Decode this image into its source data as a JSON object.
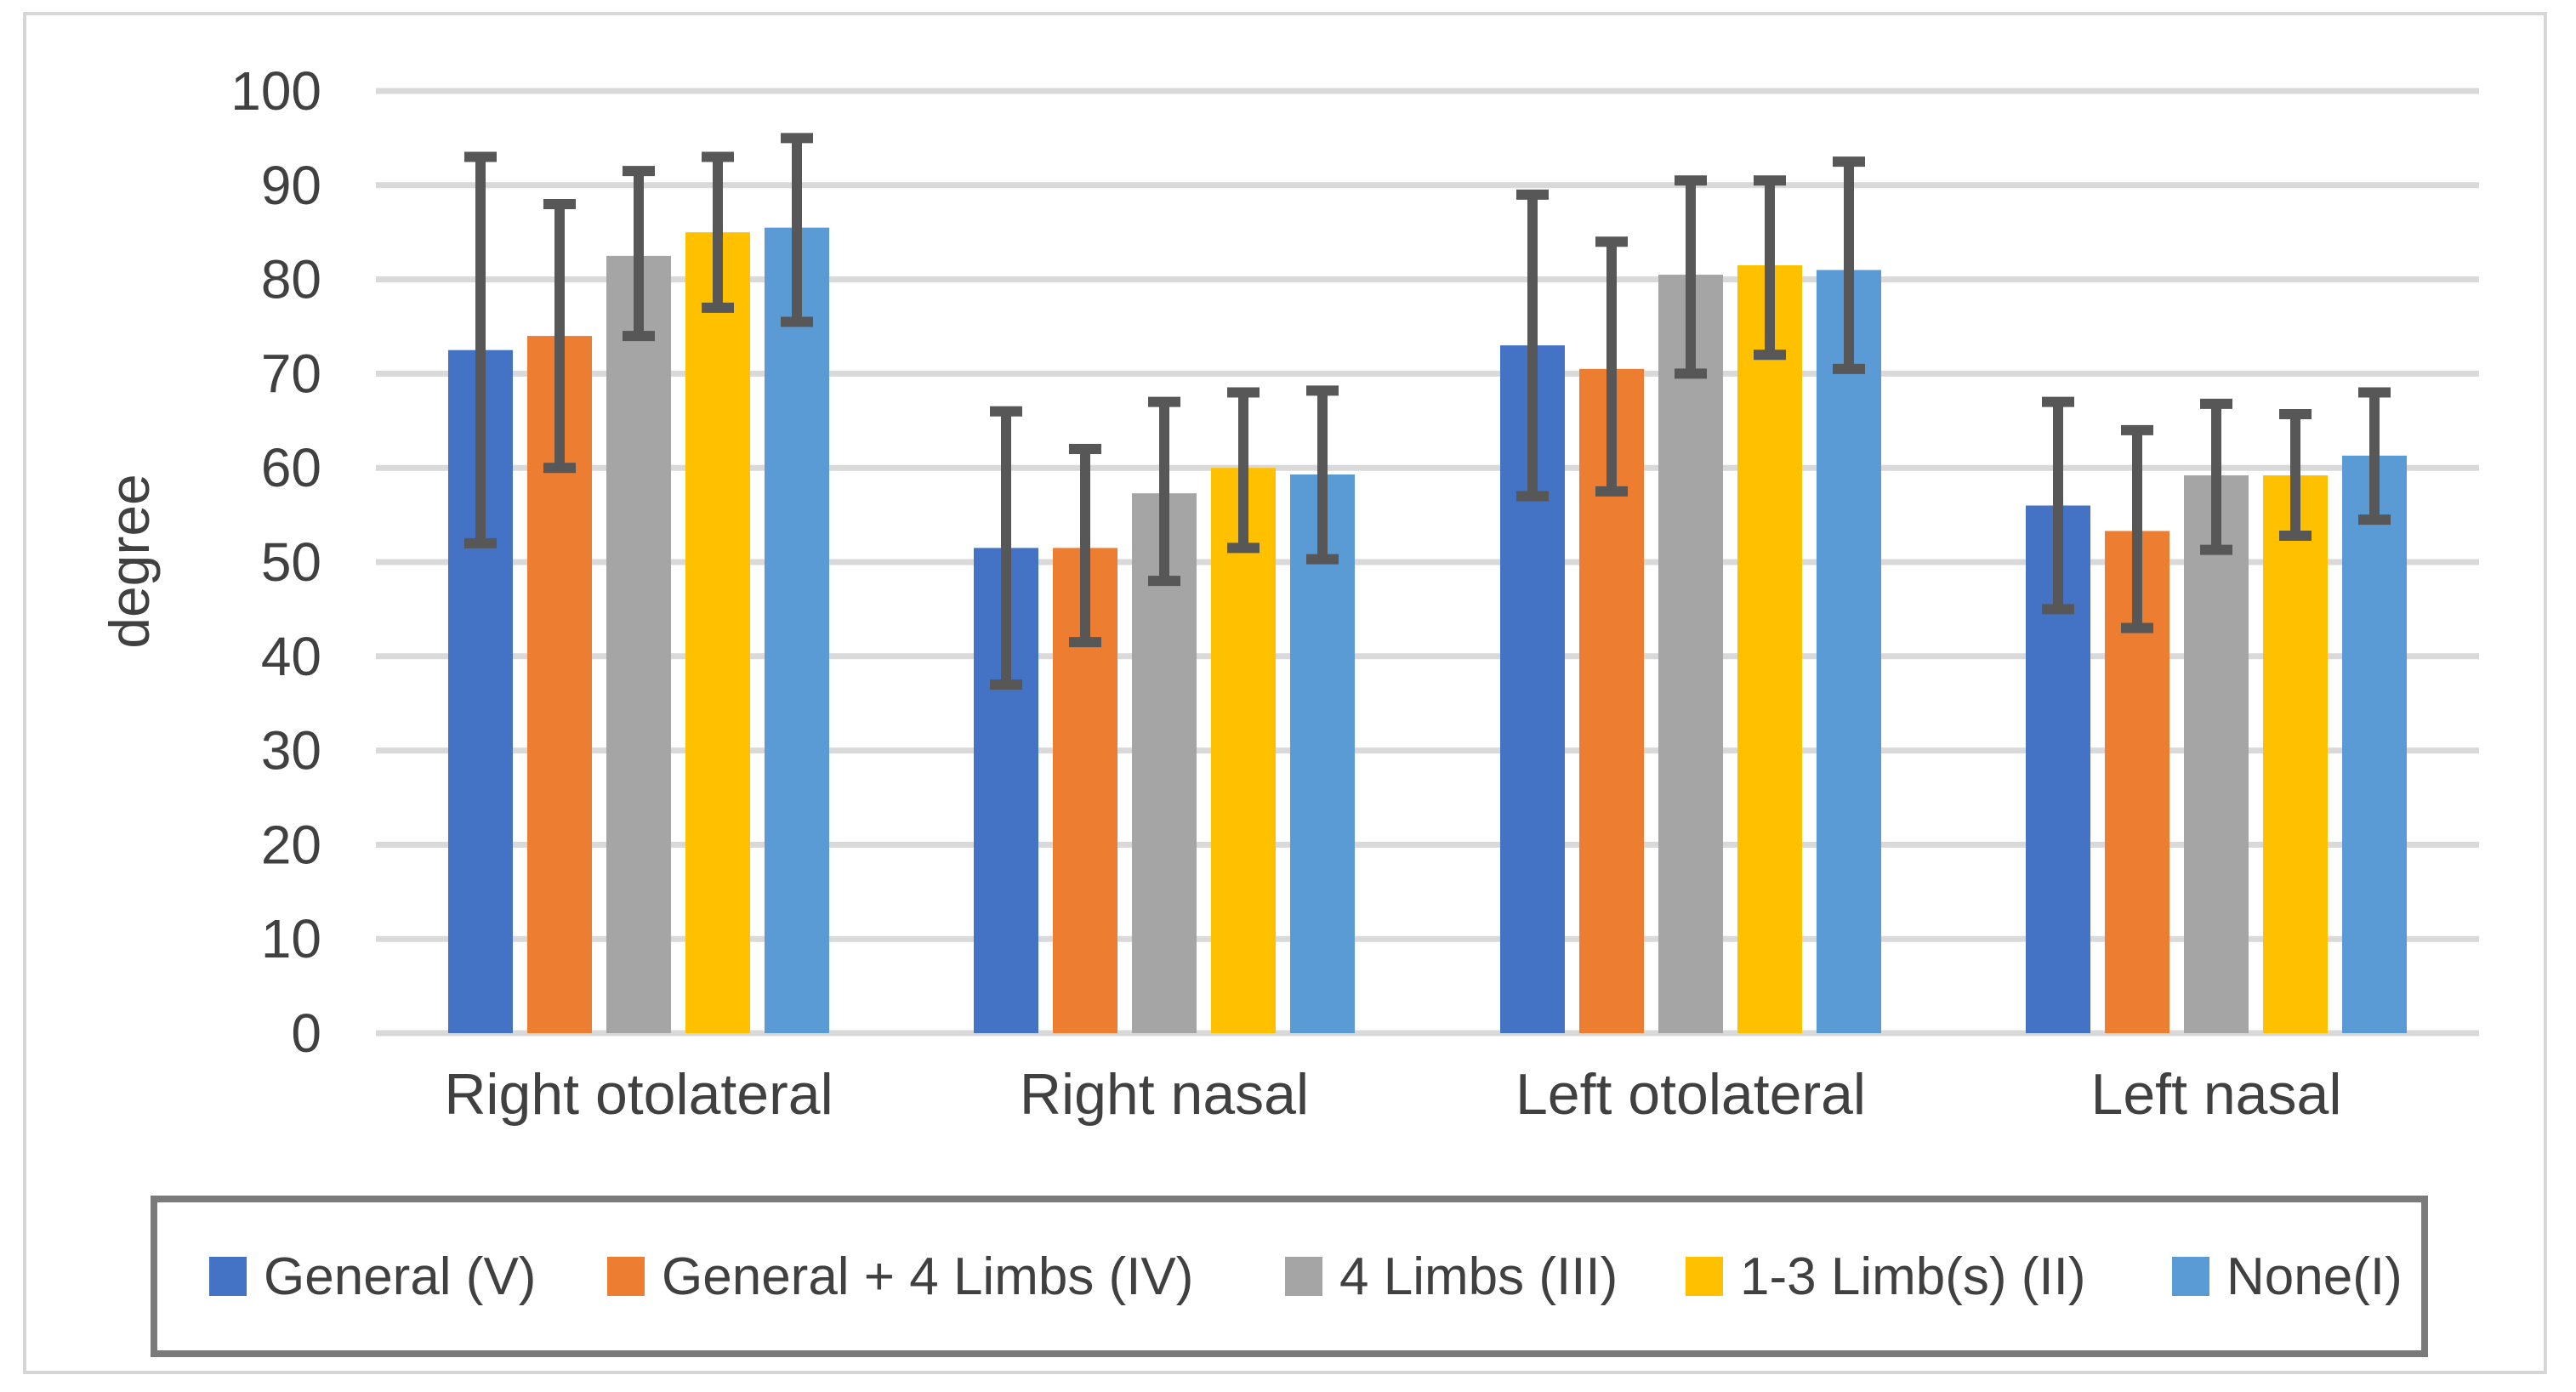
{
  "chart_data": {
    "type": "bar",
    "title": "",
    "xlabel": "",
    "ylabel": "degree",
    "ylim": [
      0,
      100
    ],
    "yticks": [
      0,
      10,
      20,
      30,
      40,
      50,
      60,
      70,
      80,
      90,
      100
    ],
    "grid": true,
    "legend_position": "bottom",
    "error_bars": true,
    "categories": [
      "Right otolateral",
      "Right nasal",
      "Left otolateral",
      "Left nasal"
    ],
    "series": [
      {
        "name": "General (V)",
        "color": "#4472C4",
        "values": [
          72.5,
          51.5,
          73,
          56
        ],
        "error_high": [
          93,
          66,
          89,
          67
        ],
        "error_low": [
          52,
          37,
          57,
          45
        ]
      },
      {
        "name": "General + 4 Limbs (IV)",
        "color": "#ED7D31",
        "values": [
          74,
          51.5,
          70.5,
          53.3
        ],
        "error_high": [
          88,
          62,
          84,
          64
        ],
        "error_low": [
          60,
          41.5,
          57.5,
          43
        ]
      },
      {
        "name": "4 Limbs (III)",
        "color": "#A5A5A5",
        "values": [
          82.5,
          57.3,
          80.5,
          59.2
        ],
        "error_high": [
          91.5,
          67,
          90.5,
          66.8
        ],
        "error_low": [
          74,
          48,
          70,
          51.3
        ]
      },
      {
        "name": "1-3 Limb(s) (II)",
        "color": "#FFC000",
        "values": [
          85,
          60,
          81.5,
          59.2
        ],
        "error_high": [
          93,
          68,
          90.5,
          65.7
        ],
        "error_low": [
          77,
          51.5,
          72,
          52.8
        ]
      },
      {
        "name": "None(I)",
        "color": "#5B9BD5",
        "values": [
          85.5,
          59.3,
          81,
          61.3
        ],
        "error_high": [
          95,
          68.2,
          92.5,
          68
        ],
        "error_low": [
          75.5,
          50.3,
          70.5,
          54.5
        ]
      }
    ],
    "colors": {
      "gridline": "#D9D9D9",
      "axis_line": "#D9D9D9",
      "error_bar": "#575757",
      "text": "#404040",
      "legend_border": "#7A7A7A",
      "frame_border": "#D6D6D6"
    }
  }
}
